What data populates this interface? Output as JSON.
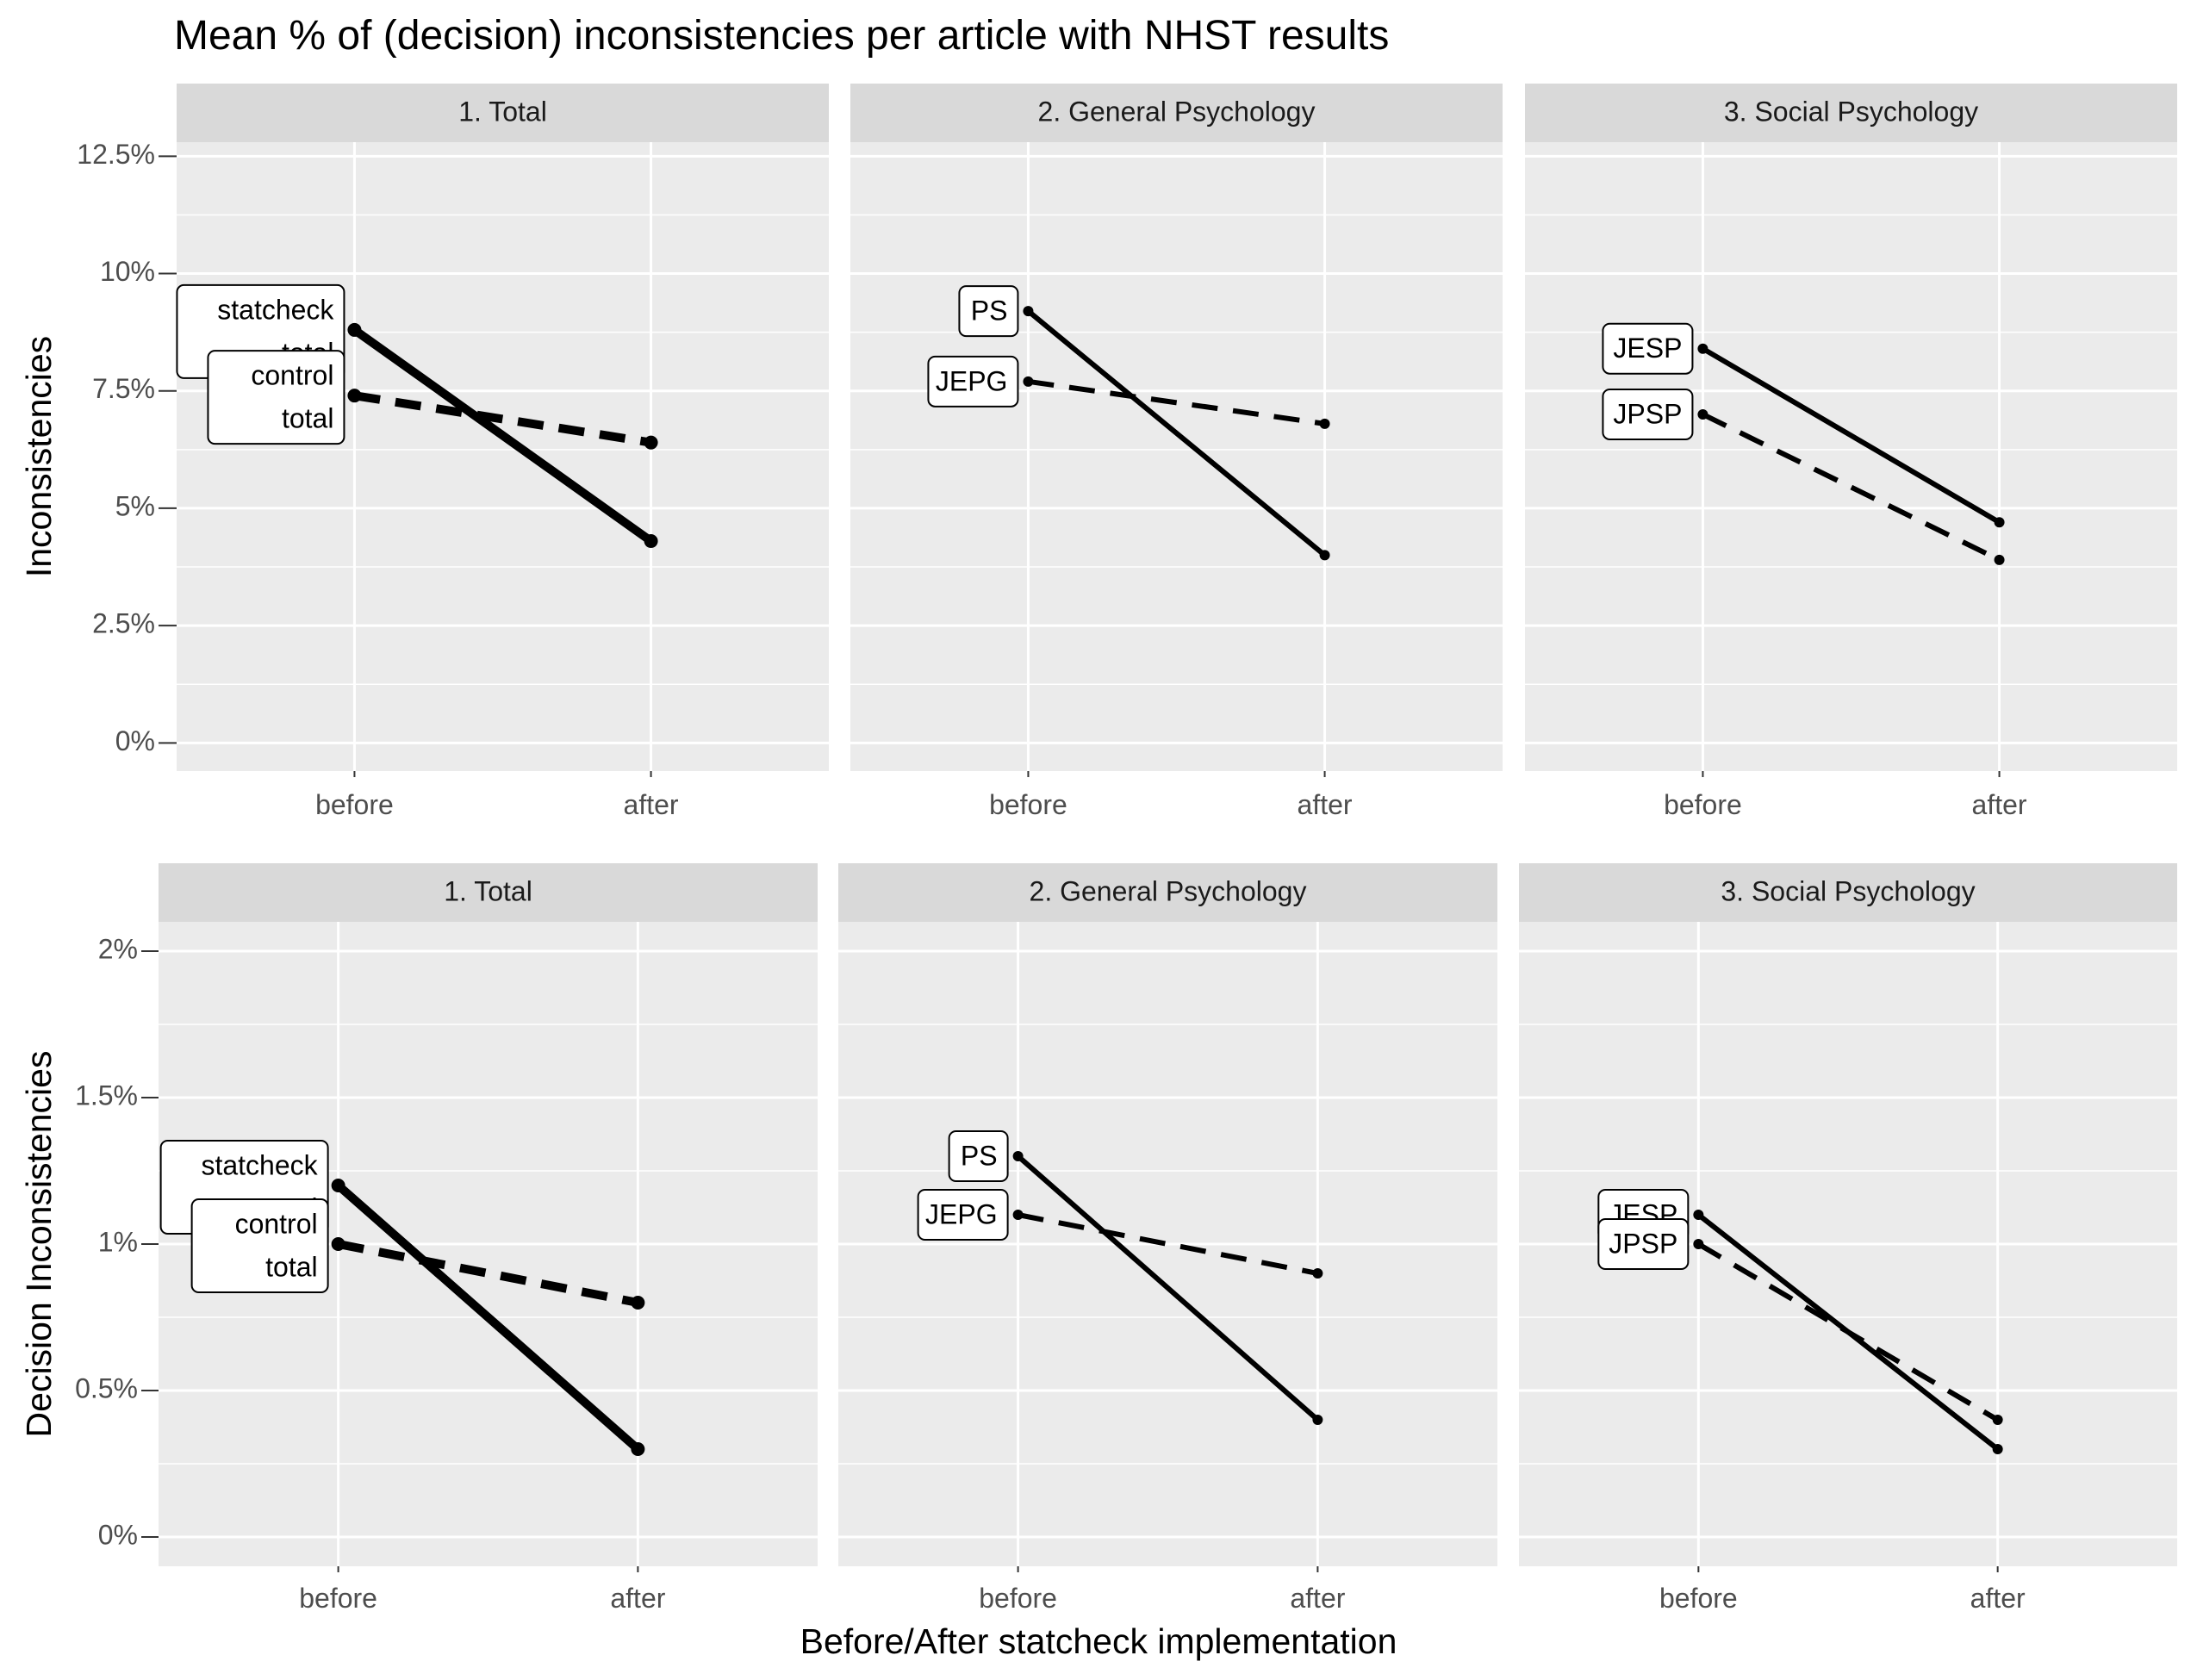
{
  "title": "Mean % of (decision) inconsistencies per article with NHST results",
  "xlabel": "Before/After statcheck implementation",
  "colors": {
    "panel_bg": "#EBEBEB",
    "strip_bg": "#D9D9D9",
    "grid": "#FFFFFF",
    "line": "#000000",
    "tick_text": "#4D4D4D"
  },
  "chart_data": [
    {
      "type": "line",
      "ylabel": "Inconsistencies",
      "y_ticks": [
        "0%",
        "2.5%",
        "5%",
        "7.5%",
        "10%",
        "12.5%"
      ],
      "y_tick_values": [
        0,
        2.5,
        5,
        7.5,
        10,
        12.5
      ],
      "ylim": [
        -0.6,
        12.8
      ],
      "categories": [
        "before",
        "after"
      ],
      "grid": true,
      "facets": [
        {
          "strip": "1. Total",
          "series": [
            {
              "labels": [
                "statcheck",
                "total"
              ],
              "style": "solid",
              "thick": true,
              "values": [
                8.8,
                4.3
              ]
            },
            {
              "labels": [
                "control",
                "total"
              ],
              "style": "dashed",
              "thick": true,
              "values": [
                7.4,
                6.4
              ]
            }
          ]
        },
        {
          "strip": "2. General Psychology",
          "series": [
            {
              "labels": [
                "PS"
              ],
              "style": "solid",
              "values": [
                9.2,
                4.0
              ]
            },
            {
              "labels": [
                "JEPG"
              ],
              "style": "dashed",
              "values": [
                7.7,
                6.8
              ]
            }
          ]
        },
        {
          "strip": "3. Social Psychology",
          "series": [
            {
              "labels": [
                "JESP"
              ],
              "style": "solid",
              "values": [
                8.4,
                4.7
              ]
            },
            {
              "labels": [
                "JPSP"
              ],
              "style": "dashed",
              "values": [
                7.0,
                3.9
              ]
            }
          ]
        }
      ]
    },
    {
      "type": "line",
      "ylabel": "Decision Inconsistencies",
      "y_ticks": [
        "0%",
        "0.5%",
        "1%",
        "1.5%",
        "2%"
      ],
      "y_tick_values": [
        0,
        0.5,
        1,
        1.5,
        2
      ],
      "ylim": [
        -0.1,
        2.1
      ],
      "categories": [
        "before",
        "after"
      ],
      "grid": true,
      "facets": [
        {
          "strip": "1. Total",
          "series": [
            {
              "labels": [
                "statcheck",
                "total"
              ],
              "style": "solid",
              "thick": true,
              "values": [
                1.2,
                0.3
              ]
            },
            {
              "labels": [
                "control",
                "total"
              ],
              "style": "dashed",
              "thick": true,
              "values": [
                1.0,
                0.8
              ]
            }
          ]
        },
        {
          "strip": "2. General Psychology",
          "series": [
            {
              "labels": [
                "PS"
              ],
              "style": "solid",
              "values": [
                1.3,
                0.4
              ]
            },
            {
              "labels": [
                "JEPG"
              ],
              "style": "dashed",
              "values": [
                1.1,
                0.9
              ]
            }
          ]
        },
        {
          "strip": "3. Social Psychology",
          "series": [
            {
              "labels": [
                "JESP"
              ],
              "style": "solid",
              "values": [
                1.1,
                0.3
              ]
            },
            {
              "labels": [
                "JPSP"
              ],
              "style": "dashed",
              "values": [
                1.0,
                0.4
              ]
            }
          ]
        }
      ]
    }
  ]
}
